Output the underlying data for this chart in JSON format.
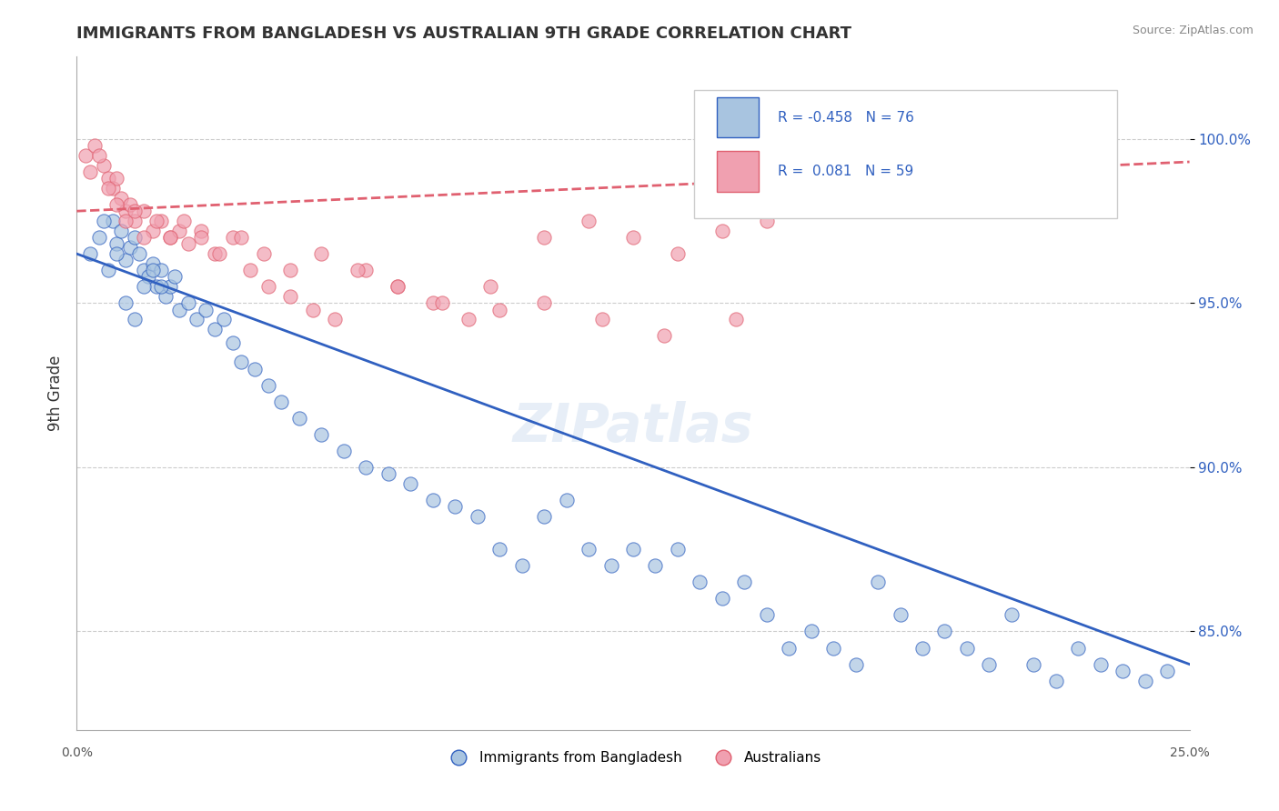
{
  "title": "IMMIGRANTS FROM BANGLADESH VS AUSTRALIAN 9TH GRADE CORRELATION CHART",
  "source": "Source: ZipAtlas.com",
  "ylabel": "9th Grade",
  "xlim": [
    0.0,
    25.0
  ],
  "ylim": [
    82.0,
    102.5
  ],
  "yticks": [
    85.0,
    90.0,
    95.0,
    100.0
  ],
  "ytick_labels": [
    "85.0%",
    "90.0%",
    "95.0%",
    "100.0%"
  ],
  "blue_R": -0.458,
  "blue_N": 76,
  "pink_R": 0.081,
  "pink_N": 59,
  "blue_color": "#a8c4e0",
  "pink_color": "#f0a0b0",
  "blue_line_color": "#3060c0",
  "pink_line_color": "#e06070",
  "watermark": "ZIPatlas",
  "blue_scatter_x": [
    0.3,
    0.5,
    0.7,
    0.8,
    0.9,
    1.0,
    1.1,
    1.2,
    1.3,
    1.4,
    1.5,
    1.6,
    1.7,
    1.8,
    1.9,
    2.0,
    2.1,
    2.2,
    2.3,
    2.5,
    2.7,
    2.9,
    3.1,
    3.3,
    3.5,
    3.7,
    4.0,
    4.3,
    4.6,
    5.0,
    5.5,
    6.0,
    6.5,
    7.0,
    7.5,
    8.0,
    8.5,
    9.0,
    9.5,
    10.0,
    10.5,
    11.0,
    11.5,
    12.0,
    12.5,
    13.0,
    13.5,
    14.0,
    14.5,
    15.0,
    15.5,
    16.0,
    16.5,
    17.0,
    17.5,
    18.0,
    18.5,
    19.0,
    19.5,
    20.0,
    20.5,
    21.0,
    21.5,
    22.0,
    22.5,
    23.0,
    23.5,
    24.0,
    24.5,
    0.6,
    0.9,
    1.1,
    1.3,
    1.5,
    1.7,
    1.9
  ],
  "blue_scatter_y": [
    96.5,
    97.0,
    96.0,
    97.5,
    96.8,
    97.2,
    96.3,
    96.7,
    97.0,
    96.5,
    96.0,
    95.8,
    96.2,
    95.5,
    96.0,
    95.2,
    95.5,
    95.8,
    94.8,
    95.0,
    94.5,
    94.8,
    94.2,
    94.5,
    93.8,
    93.2,
    93.0,
    92.5,
    92.0,
    91.5,
    91.0,
    90.5,
    90.0,
    89.8,
    89.5,
    89.0,
    88.8,
    88.5,
    87.5,
    87.0,
    88.5,
    89.0,
    87.5,
    87.0,
    87.5,
    87.0,
    87.5,
    86.5,
    86.0,
    86.5,
    85.5,
    84.5,
    85.0,
    84.5,
    84.0,
    86.5,
    85.5,
    84.5,
    85.0,
    84.5,
    84.0,
    85.5,
    84.0,
    83.5,
    84.5,
    84.0,
    83.8,
    83.5,
    83.8,
    97.5,
    96.5,
    95.0,
    94.5,
    95.5,
    96.0,
    95.5
  ],
  "pink_scatter_x": [
    0.2,
    0.4,
    0.6,
    0.7,
    0.8,
    0.9,
    1.0,
    1.1,
    1.2,
    1.3,
    1.5,
    1.7,
    1.9,
    2.1,
    2.3,
    2.5,
    2.8,
    3.1,
    3.5,
    3.9,
    4.3,
    4.8,
    5.3,
    5.8,
    6.5,
    7.2,
    8.0,
    8.8,
    9.5,
    10.5,
    11.5,
    12.5,
    13.5,
    14.5,
    15.5,
    0.3,
    0.5,
    0.7,
    0.9,
    1.1,
    1.3,
    1.5,
    1.8,
    2.1,
    2.4,
    2.8,
    3.2,
    3.7,
    4.2,
    4.8,
    5.5,
    6.3,
    7.2,
    8.2,
    9.3,
    10.5,
    11.8,
    13.2,
    14.8
  ],
  "pink_scatter_y": [
    99.5,
    99.8,
    99.2,
    98.8,
    98.5,
    98.8,
    98.2,
    97.8,
    98.0,
    97.5,
    97.8,
    97.2,
    97.5,
    97.0,
    97.2,
    96.8,
    97.2,
    96.5,
    97.0,
    96.0,
    95.5,
    95.2,
    94.8,
    94.5,
    96.0,
    95.5,
    95.0,
    94.5,
    94.8,
    97.0,
    97.5,
    97.0,
    96.5,
    97.2,
    97.5,
    99.0,
    99.5,
    98.5,
    98.0,
    97.5,
    97.8,
    97.0,
    97.5,
    97.0,
    97.5,
    97.0,
    96.5,
    97.0,
    96.5,
    96.0,
    96.5,
    96.0,
    95.5,
    95.0,
    95.5,
    95.0,
    94.5,
    94.0,
    94.5
  ],
  "blue_line_x0": 0.0,
  "blue_line_y0": 96.5,
  "blue_line_x1": 25.0,
  "blue_line_y1": 84.0,
  "pink_line_x0": 0.0,
  "pink_line_y0": 97.8,
  "pink_line_x1": 25.0,
  "pink_line_y1": 99.3
}
